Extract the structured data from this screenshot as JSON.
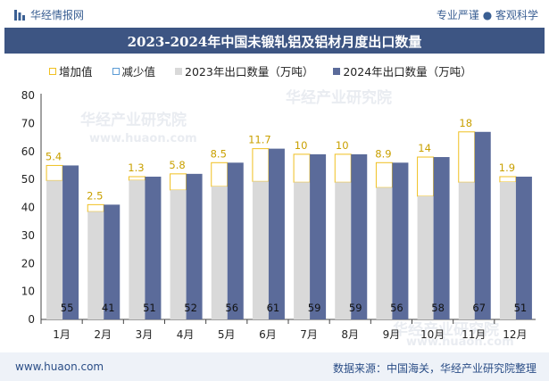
{
  "header": {
    "brand": "华经情报网",
    "tagline": "专业严谨 ● 客观科学"
  },
  "footer": {
    "website": "www.huaon.com",
    "source": "数据来源：中国海关，华经产业研究院整理"
  },
  "watermark": {
    "text_cn": "华经产业研究院",
    "text_url": "www.huaon.com"
  },
  "colors": {
    "title_bg": "#3d5583",
    "bar_2023": "#d9d9d9",
    "bar_2024": "#5b6b9a",
    "increase_outline": "#f0c020",
    "decrease_outline": "#5b9bd5"
  },
  "chart_data": {
    "type": "bar",
    "title": "2023-2024年中国未锻轧铝及铝材月度出口数量",
    "categories": [
      "1月",
      "2月",
      "3月",
      "4月",
      "5月",
      "6月",
      "7月",
      "8月",
      "9月",
      "10月",
      "11月",
      "12月"
    ],
    "series": [
      {
        "name": "2023年出口数量（万吨）",
        "values": [
          49.6,
          38.5,
          49.7,
          46.2,
          47.5,
          49.3,
          49.0,
          49.0,
          47.1,
          44.0,
          49.0,
          49.1
        ]
      },
      {
        "name": "2024年出口数量（万吨）",
        "values": [
          55,
          41,
          51,
          52,
          56,
          61,
          59,
          59,
          56,
          58,
          67,
          51
        ]
      }
    ],
    "change_legend": {
      "increase": "增加值",
      "decrease": "减少值"
    },
    "change_values": [
      "5.4",
      "2.5",
      "1.3",
      "5.8",
      "8.5",
      "11.7",
      "10",
      "10",
      "8.9",
      "14",
      "18",
      "1.9"
    ],
    "yticks": [
      "0",
      "10",
      "20",
      "30",
      "40",
      "50",
      "60",
      "70",
      "80"
    ],
    "ylim": [
      0,
      80
    ],
    "legend_position": "top"
  }
}
